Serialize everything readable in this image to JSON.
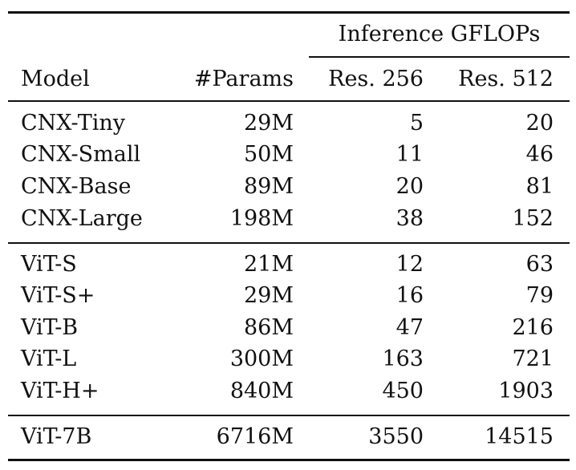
{
  "table": {
    "group_header": "Inference GFLOPs",
    "headers": {
      "model": "Model",
      "params": "#Params",
      "res256": "Res. 256",
      "res512": "Res. 512"
    },
    "groups": [
      {
        "rows": [
          {
            "model": "CNX-Tiny",
            "params": "29M",
            "res256": "5",
            "res512": "20"
          },
          {
            "model": "CNX-Small",
            "params": "50M",
            "res256": "11",
            "res512": "46"
          },
          {
            "model": "CNX-Base",
            "params": "89M",
            "res256": "20",
            "res512": "81"
          },
          {
            "model": "CNX-Large",
            "params": "198M",
            "res256": "38",
            "res512": "152"
          }
        ]
      },
      {
        "rows": [
          {
            "model": "ViT-S",
            "params": "21M",
            "res256": "12",
            "res512": "63"
          },
          {
            "model": "ViT-S+",
            "params": "29M",
            "res256": "16",
            "res512": "79"
          },
          {
            "model": "ViT-B",
            "params": "86M",
            "res256": "47",
            "res512": "216"
          },
          {
            "model": "ViT-L",
            "params": "300M",
            "res256": "163",
            "res512": "721"
          },
          {
            "model": "ViT-H+",
            "params": "840M",
            "res256": "450",
            "res512": "1903"
          }
        ]
      },
      {
        "rows": [
          {
            "model": "ViT-7B",
            "params": "6716M",
            "res256": "3550",
            "res512": "14515"
          }
        ]
      }
    ]
  }
}
